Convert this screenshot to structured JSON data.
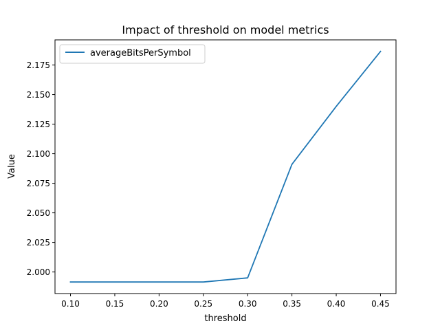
{
  "chart_data": {
    "type": "line",
    "title": "Impact of threshold on model metrics",
    "xlabel": "threshold",
    "ylabel": "Value",
    "x": [
      0.1,
      0.15,
      0.2,
      0.25,
      0.3,
      0.35,
      0.4,
      0.45
    ],
    "series": [
      {
        "name": "averageBitsPerSymbol",
        "color": "#1f77b4",
        "values": [
          1.9915,
          1.9915,
          1.9915,
          1.9915,
          1.995,
          2.091,
          2.14,
          2.1865
        ]
      }
    ],
    "xticks": [
      "0.10",
      "0.15",
      "0.20",
      "0.25",
      "0.30",
      "0.35",
      "0.40",
      "0.45"
    ],
    "yticks": [
      "2.000",
      "2.025",
      "2.050",
      "2.075",
      "2.100",
      "2.125",
      "2.150",
      "2.175"
    ],
    "xlim": [
      0.0825,
      0.4675
    ],
    "ylim": [
      1.98175,
      2.19625
    ],
    "grid": false,
    "legend_position": "upper-left"
  }
}
